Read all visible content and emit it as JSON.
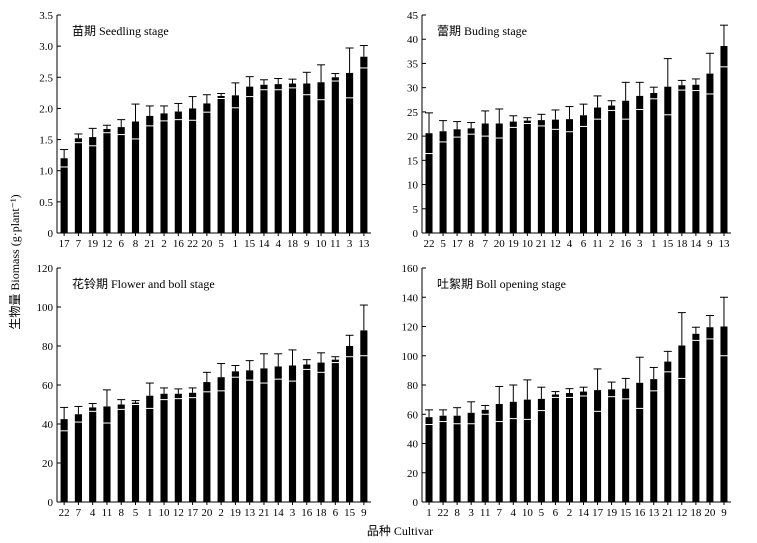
{
  "figure": {
    "ylabel": "生物量 Biomass (g·plant⁻¹)",
    "xlabel": "品种 Cultivar"
  },
  "chart_data": [
    {
      "type": "bar",
      "title": "苗期 Seedling stage",
      "ylim": [
        0,
        3.5
      ],
      "yticks": [
        "0",
        "0.5",
        "1.0",
        "1.5",
        "2.0",
        "2.5",
        "3.0",
        "3.5"
      ],
      "categories": [
        "17",
        "7",
        "19",
        "12",
        "6",
        "8",
        "21",
        "2",
        "16",
        "22",
        "20",
        "5",
        "1",
        "15",
        "14",
        "4",
        "18",
        "9",
        "10",
        "11",
        "3",
        "13"
      ],
      "values": [
        1.2,
        1.52,
        1.54,
        1.67,
        1.7,
        1.79,
        1.88,
        1.92,
        1.95,
        2.0,
        2.08,
        2.2,
        2.21,
        2.35,
        2.38,
        2.39,
        2.4,
        2.4,
        2.42,
        2.5,
        2.57,
        2.83
      ],
      "errors": [
        0.14,
        0.07,
        0.14,
        0.06,
        0.12,
        0.28,
        0.16,
        0.12,
        0.13,
        0.19,
        0.14,
        0.04,
        0.2,
        0.16,
        0.08,
        0.09,
        0.07,
        0.18,
        0.28,
        0.06,
        0.4,
        0.18
      ]
    },
    {
      "type": "bar",
      "title": "蕾期 Buding  stage",
      "ylim": [
        0,
        45
      ],
      "yticks": [
        "0",
        "5",
        "10",
        "15",
        "20",
        "25",
        "30",
        "35",
        "40",
        "45"
      ],
      "categories": [
        "22",
        "5",
        "17",
        "8",
        "7",
        "20",
        "19",
        "10",
        "21",
        "12",
        "4",
        "6",
        "11",
        "2",
        "16",
        "3",
        "1",
        "15",
        "18",
        "14",
        "9",
        "13"
      ],
      "values": [
        20.6,
        21.0,
        21.4,
        21.6,
        22.6,
        22.6,
        23.0,
        23.2,
        23.3,
        23.4,
        23.5,
        24.3,
        25.9,
        26.3,
        27.3,
        28.3,
        28.9,
        30.2,
        30.5,
        30.6,
        32.9,
        38.6
      ],
      "errors": [
        4.2,
        2.2,
        1.6,
        1.2,
        2.6,
        3.0,
        1.2,
        0.6,
        1.2,
        2.0,
        2.6,
        2.3,
        2.4,
        1.0,
        3.8,
        2.8,
        1.2,
        5.8,
        1.0,
        1.2,
        4.2,
        4.3
      ]
    },
    {
      "type": "bar",
      "title": "花铃期 Flower and boll stage",
      "ylim": [
        0,
        120
      ],
      "yticks": [
        "0",
        "20",
        "40",
        "60",
        "80",
        "100",
        "120"
      ],
      "categories": [
        "22",
        "7",
        "4",
        "11",
        "8",
        "5",
        "1",
        "10",
        "12",
        "17",
        "20",
        "2",
        "19",
        "13",
        "21",
        "14",
        "3",
        "16",
        "18",
        "6",
        "15",
        "9"
      ],
      "values": [
        42.5,
        45.0,
        48.5,
        49.0,
        50.0,
        51.0,
        54.5,
        55.5,
        55.5,
        56.0,
        61.5,
        64.0,
        67.0,
        67.5,
        68.5,
        69.5,
        70.0,
        70.5,
        71.5,
        73.0,
        80.0,
        88.0
      ],
      "errors": [
        6.0,
        4.0,
        2.0,
        8.5,
        2.5,
        1.0,
        6.5,
        3.0,
        2.5,
        2.5,
        5.0,
        7.0,
        3.0,
        5.0,
        7.5,
        6.5,
        8.0,
        2.5,
        5.0,
        1.5,
        5.5,
        13.0
      ]
    },
    {
      "type": "bar",
      "title": "吐絮期 Boll opening stage",
      "ylim": [
        0,
        160
      ],
      "yticks": [
        "0",
        "20",
        "40",
        "60",
        "80",
        "100",
        "120",
        "140",
        "160"
      ],
      "categories": [
        "1",
        "22",
        "8",
        "3",
        "11",
        "7",
        "4",
        "10",
        "5",
        "6",
        "2",
        "14",
        "17",
        "19",
        "15",
        "16",
        "13",
        "21",
        "12",
        "18",
        "20",
        "9"
      ],
      "values": [
        58.0,
        59.0,
        59.0,
        61.0,
        63.0,
        67.0,
        68.5,
        70.0,
        70.5,
        73.5,
        74.5,
        75.5,
        76.5,
        77.0,
        77.5,
        81.5,
        84.0,
        96.0,
        107.0,
        115.0,
        119.5,
        120.0
      ],
      "errors": [
        5.0,
        4.0,
        5.5,
        7.5,
        3.0,
        12.0,
        11.5,
        13.5,
        8.0,
        2.0,
        3.0,
        3.0,
        14.5,
        5.0,
        7.0,
        17.5,
        8.0,
        7.0,
        22.5,
        4.5,
        8.0,
        20.0
      ]
    }
  ]
}
